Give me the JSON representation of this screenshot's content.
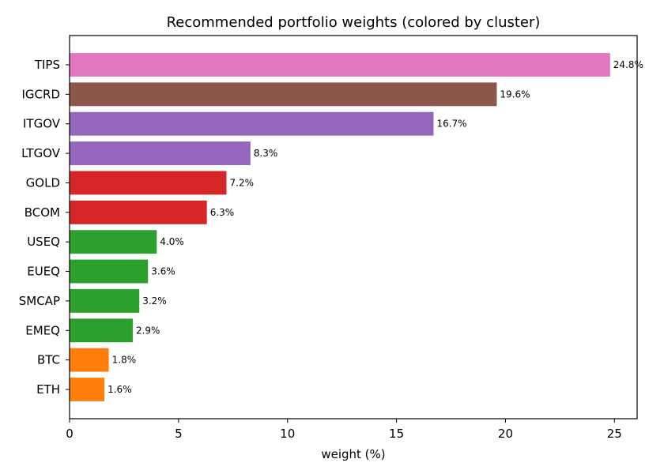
{
  "chart_data": {
    "type": "bar",
    "orientation": "horizontal",
    "title": "Recommended portfolio weights (colored by cluster)",
    "xlabel": "weight (%)",
    "ylabel": "",
    "xlim": [
      0,
      26.04
    ],
    "xticks": [
      0,
      5,
      10,
      15,
      20,
      25
    ],
    "grid": false,
    "categories": [
      "TIPS",
      "IGCRD",
      "ITGOV",
      "LTGOV",
      "GOLD",
      "BCOM",
      "USEQ",
      "EUEQ",
      "SMCAP",
      "EMEQ",
      "BTC",
      "ETH"
    ],
    "values": [
      24.8,
      19.6,
      16.7,
      8.3,
      7.2,
      6.3,
      4.0,
      3.6,
      3.2,
      2.9,
      1.8,
      1.6
    ],
    "labels": [
      "24.8%",
      "19.6%",
      "16.7%",
      "8.3%",
      "7.2%",
      "6.3%",
      "4.0%",
      "3.6%",
      "3.2%",
      "2.9%",
      "1.8%",
      "1.6%"
    ],
    "colors": [
      "#e377c2",
      "#8c564b",
      "#9467bd",
      "#9467bd",
      "#d62728",
      "#d62728",
      "#2ca02c",
      "#2ca02c",
      "#2ca02c",
      "#2ca02c",
      "#ff7f0e",
      "#ff7f0e"
    ]
  }
}
